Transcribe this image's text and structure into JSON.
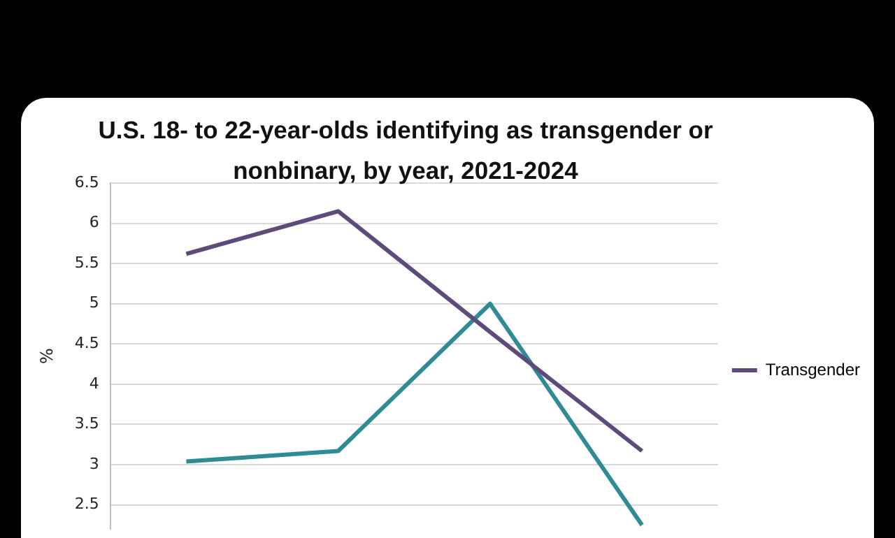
{
  "chart_data": {
    "type": "line",
    "title": "U.S. 18- to 22-year-olds identifying as transgender or nonbinary, by year, 2021-2024",
    "ylabel": "%",
    "categories": [
      null,
      null,
      null,
      null
    ],
    "series": [
      {
        "name": "Transgender",
        "color": "#5e4b7c",
        "values": [
          5.62,
          6.15,
          4.65,
          3.17
        ]
      },
      {
        "color": "#2f8c97",
        "values": [
          3.04,
          3.17,
          5.0,
          2.25
        ]
      }
    ],
    "ylim": [
      2.2,
      6.5
    ],
    "yticks": [
      2.5,
      3,
      3.5,
      4,
      4.5,
      5,
      5.5,
      6,
      6.5
    ],
    "grid": "y",
    "legend": "right",
    "marker": "none",
    "line_style": "solid"
  }
}
